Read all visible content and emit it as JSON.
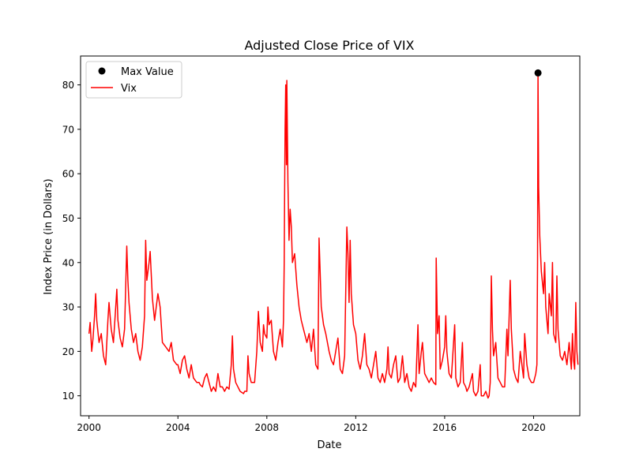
{
  "chart_data": {
    "type": "line",
    "title": "Adjusted Close Price of VIX",
    "xlabel": "Date",
    "ylabel": "Index Price (in Dollars)",
    "xlim": [
      1999.62,
      2022.08
    ],
    "ylim": [
      5.5,
      86.5
    ],
    "xticks": [
      {
        "value": 2000,
        "label": "2000"
      },
      {
        "value": 2004,
        "label": "2004"
      },
      {
        "value": 2008,
        "label": "2008"
      },
      {
        "value": 2012,
        "label": "2012"
      },
      {
        "value": 2016,
        "label": "2016"
      },
      {
        "value": 2020,
        "label": "2020"
      }
    ],
    "yticks": [
      {
        "value": 10,
        "label": "10"
      },
      {
        "value": 20,
        "label": "20"
      },
      {
        "value": 30,
        "label": "30"
      },
      {
        "value": 40,
        "label": "40"
      },
      {
        "value": 50,
        "label": "50"
      },
      {
        "value": 60,
        "label": "60"
      },
      {
        "value": 70,
        "label": "70"
      },
      {
        "value": 80,
        "label": "80"
      }
    ],
    "grid": false,
    "legend": {
      "placement": "top-left",
      "entries": [
        {
          "label": "Max Value",
          "marker": "dot",
          "color": "#000000"
        },
        {
          "label": "Vix",
          "marker": "line",
          "color": "#ff0000"
        }
      ]
    },
    "series": [
      {
        "name": "Vix",
        "color": "#ff0000",
        "points": [
          [
            2000.0,
            24
          ],
          [
            2000.05,
            26.5
          ],
          [
            2000.12,
            20
          ],
          [
            2000.18,
            23
          ],
          [
            2000.25,
            28
          ],
          [
            2000.3,
            33
          ],
          [
            2000.35,
            27
          ],
          [
            2000.45,
            22
          ],
          [
            2000.55,
            24
          ],
          [
            2000.65,
            19
          ],
          [
            2000.75,
            17
          ],
          [
            2000.85,
            27
          ],
          [
            2000.9,
            31
          ],
          [
            2001.0,
            25
          ],
          [
            2001.1,
            22
          ],
          [
            2001.2,
            30
          ],
          [
            2001.25,
            34
          ],
          [
            2001.3,
            27
          ],
          [
            2001.4,
            23
          ],
          [
            2001.5,
            21
          ],
          [
            2001.6,
            25
          ],
          [
            2001.7,
            43.7
          ],
          [
            2001.75,
            36
          ],
          [
            2001.8,
            31
          ],
          [
            2001.9,
            25
          ],
          [
            2002.0,
            22
          ],
          [
            2002.1,
            24
          ],
          [
            2002.2,
            20
          ],
          [
            2002.3,
            18
          ],
          [
            2002.4,
            21
          ],
          [
            2002.5,
            28
          ],
          [
            2002.55,
            45
          ],
          [
            2002.6,
            36
          ],
          [
            2002.7,
            40
          ],
          [
            2002.75,
            42.5
          ],
          [
            2002.85,
            32
          ],
          [
            2002.95,
            27
          ],
          [
            2003.0,
            29
          ],
          [
            2003.1,
            33
          ],
          [
            2003.2,
            30
          ],
          [
            2003.3,
            22
          ],
          [
            2003.45,
            21
          ],
          [
            2003.6,
            20
          ],
          [
            2003.7,
            22
          ],
          [
            2003.8,
            18
          ],
          [
            2003.95,
            17
          ],
          [
            2004.0,
            17
          ],
          [
            2004.1,
            15
          ],
          [
            2004.2,
            18
          ],
          [
            2004.3,
            19
          ],
          [
            2004.4,
            16
          ],
          [
            2004.5,
            14
          ],
          [
            2004.6,
            17
          ],
          [
            2004.7,
            14
          ],
          [
            2004.85,
            13
          ],
          [
            2004.95,
            13
          ],
          [
            2005.0,
            12.5
          ],
          [
            2005.1,
            12
          ],
          [
            2005.2,
            14
          ],
          [
            2005.3,
            15
          ],
          [
            2005.4,
            13
          ],
          [
            2005.5,
            11
          ],
          [
            2005.6,
            12
          ],
          [
            2005.7,
            11
          ],
          [
            2005.8,
            15
          ],
          [
            2005.9,
            12
          ],
          [
            2006.0,
            12
          ],
          [
            2006.1,
            11
          ],
          [
            2006.2,
            12
          ],
          [
            2006.3,
            11.5
          ],
          [
            2006.4,
            17
          ],
          [
            2006.45,
            23.5
          ],
          [
            2006.5,
            16
          ],
          [
            2006.6,
            13
          ],
          [
            2006.7,
            12
          ],
          [
            2006.8,
            11
          ],
          [
            2006.95,
            10.5
          ],
          [
            2007.0,
            11
          ],
          [
            2007.1,
            11
          ],
          [
            2007.15,
            19
          ],
          [
            2007.2,
            15
          ],
          [
            2007.3,
            13
          ],
          [
            2007.45,
            13
          ],
          [
            2007.55,
            20
          ],
          [
            2007.62,
            29
          ],
          [
            2007.7,
            22
          ],
          [
            2007.8,
            20
          ],
          [
            2007.85,
            26
          ],
          [
            2007.9,
            24
          ],
          [
            2008.0,
            23
          ],
          [
            2008.05,
            30
          ],
          [
            2008.1,
            26
          ],
          [
            2008.2,
            27
          ],
          [
            2008.3,
            20
          ],
          [
            2008.4,
            18
          ],
          [
            2008.5,
            22
          ],
          [
            2008.6,
            25
          ],
          [
            2008.7,
            21
          ],
          [
            2008.75,
            27
          ],
          [
            2008.78,
            40
          ],
          [
            2008.8,
            55
          ],
          [
            2008.82,
            70
          ],
          [
            2008.85,
            80
          ],
          [
            2008.88,
            62
          ],
          [
            2008.9,
            81
          ],
          [
            2008.95,
            58
          ],
          [
            2009.0,
            45
          ],
          [
            2009.05,
            52
          ],
          [
            2009.1,
            48
          ],
          [
            2009.15,
            40
          ],
          [
            2009.25,
            42
          ],
          [
            2009.35,
            35
          ],
          [
            2009.45,
            30
          ],
          [
            2009.55,
            27
          ],
          [
            2009.65,
            25
          ],
          [
            2009.8,
            22
          ],
          [
            2009.9,
            24
          ],
          [
            2010.0,
            20
          ],
          [
            2010.1,
            25
          ],
          [
            2010.2,
            17
          ],
          [
            2010.3,
            16
          ],
          [
            2010.35,
            45.5
          ],
          [
            2010.45,
            30
          ],
          [
            2010.55,
            26
          ],
          [
            2010.65,
            24
          ],
          [
            2010.8,
            20
          ],
          [
            2010.9,
            18
          ],
          [
            2011.0,
            17
          ],
          [
            2011.1,
            20
          ],
          [
            2011.2,
            23
          ],
          [
            2011.3,
            16
          ],
          [
            2011.4,
            15
          ],
          [
            2011.5,
            19
          ],
          [
            2011.6,
            48
          ],
          [
            2011.65,
            42
          ],
          [
            2011.7,
            31
          ],
          [
            2011.75,
            45
          ],
          [
            2011.8,
            33
          ],
          [
            2011.9,
            26
          ],
          [
            2012.0,
            24
          ],
          [
            2012.1,
            18
          ],
          [
            2012.2,
            16
          ],
          [
            2012.3,
            19
          ],
          [
            2012.4,
            24
          ],
          [
            2012.5,
            17
          ],
          [
            2012.6,
            16
          ],
          [
            2012.7,
            14
          ],
          [
            2012.8,
            17
          ],
          [
            2012.9,
            20
          ],
          [
            2013.0,
            14
          ],
          [
            2013.1,
            13
          ],
          [
            2013.2,
            15
          ],
          [
            2013.3,
            13
          ],
          [
            2013.4,
            16
          ],
          [
            2013.45,
            21
          ],
          [
            2013.5,
            15
          ],
          [
            2013.6,
            14
          ],
          [
            2013.7,
            17
          ],
          [
            2013.8,
            19
          ],
          [
            2013.9,
            13
          ],
          [
            2014.0,
            14
          ],
          [
            2014.1,
            19
          ],
          [
            2014.2,
            13
          ],
          [
            2014.3,
            15
          ],
          [
            2014.4,
            12
          ],
          [
            2014.5,
            11
          ],
          [
            2014.6,
            13
          ],
          [
            2014.7,
            12
          ],
          [
            2014.8,
            26
          ],
          [
            2014.85,
            15
          ],
          [
            2014.95,
            20
          ],
          [
            2015.0,
            22
          ],
          [
            2015.1,
            15
          ],
          [
            2015.2,
            14
          ],
          [
            2015.3,
            13
          ],
          [
            2015.4,
            14
          ],
          [
            2015.5,
            13
          ],
          [
            2015.6,
            12.5
          ],
          [
            2015.62,
            41
          ],
          [
            2015.68,
            24
          ],
          [
            2015.75,
            28
          ],
          [
            2015.8,
            16
          ],
          [
            2015.9,
            18
          ],
          [
            2016.0,
            21
          ],
          [
            2016.05,
            28
          ],
          [
            2016.1,
            20
          ],
          [
            2016.2,
            15
          ],
          [
            2016.3,
            14
          ],
          [
            2016.45,
            26
          ],
          [
            2016.5,
            14
          ],
          [
            2016.6,
            12
          ],
          [
            2016.7,
            13
          ],
          [
            2016.8,
            22
          ],
          [
            2016.85,
            13
          ],
          [
            2016.95,
            12
          ],
          [
            2017.0,
            11
          ],
          [
            2017.1,
            12
          ],
          [
            2017.25,
            15
          ],
          [
            2017.3,
            11
          ],
          [
            2017.4,
            10
          ],
          [
            2017.5,
            11
          ],
          [
            2017.6,
            17
          ],
          [
            2017.65,
            10
          ],
          [
            2017.75,
            10
          ],
          [
            2017.85,
            11
          ],
          [
            2017.95,
            9.5
          ],
          [
            2018.0,
            10
          ],
          [
            2018.05,
            13
          ],
          [
            2018.1,
            37
          ],
          [
            2018.15,
            25
          ],
          [
            2018.2,
            19
          ],
          [
            2018.3,
            22
          ],
          [
            2018.4,
            14
          ],
          [
            2018.5,
            13
          ],
          [
            2018.6,
            12
          ],
          [
            2018.7,
            12
          ],
          [
            2018.8,
            25
          ],
          [
            2018.85,
            19
          ],
          [
            2018.95,
            36
          ],
          [
            2019.0,
            25
          ],
          [
            2019.1,
            16
          ],
          [
            2019.2,
            14
          ],
          [
            2019.3,
            13
          ],
          [
            2019.4,
            20
          ],
          [
            2019.45,
            18
          ],
          [
            2019.55,
            14
          ],
          [
            2019.6,
            24
          ],
          [
            2019.7,
            17
          ],
          [
            2019.8,
            14
          ],
          [
            2019.9,
            13
          ],
          [
            2020.0,
            13
          ],
          [
            2020.1,
            15
          ],
          [
            2020.15,
            17
          ],
          [
            2020.18,
            40
          ],
          [
            2020.2,
            82.7
          ],
          [
            2020.23,
            57
          ],
          [
            2020.28,
            46
          ],
          [
            2020.35,
            38
          ],
          [
            2020.45,
            33
          ],
          [
            2020.5,
            40
          ],
          [
            2020.55,
            30
          ],
          [
            2020.65,
            24
          ],
          [
            2020.7,
            33
          ],
          [
            2020.8,
            28
          ],
          [
            2020.85,
            40
          ],
          [
            2020.9,
            24
          ],
          [
            2021.0,
            22
          ],
          [
            2021.05,
            37
          ],
          [
            2021.1,
            25
          ],
          [
            2021.2,
            19
          ],
          [
            2021.3,
            18
          ],
          [
            2021.4,
            20
          ],
          [
            2021.5,
            17
          ],
          [
            2021.6,
            22
          ],
          [
            2021.7,
            16
          ],
          [
            2021.75,
            24
          ],
          [
            2021.8,
            18
          ],
          [
            2021.85,
            16
          ],
          [
            2021.9,
            31
          ],
          [
            2021.95,
            20
          ],
          [
            2022.0,
            17
          ]
        ]
      },
      {
        "name": "Max Value",
        "color": "#000000",
        "points": [
          [
            2020.2,
            82.7
          ]
        ]
      }
    ]
  }
}
